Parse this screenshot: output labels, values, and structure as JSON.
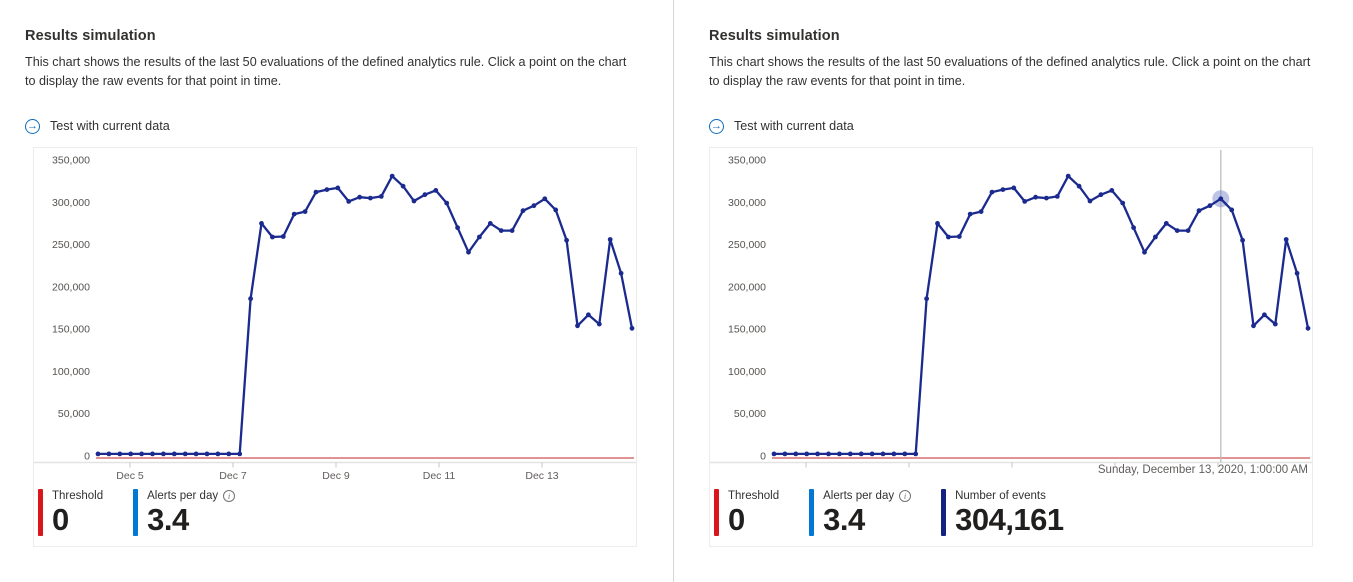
{
  "panels": [
    {
      "title": "Results simulation",
      "description": "This chart shows the results of the last 50 evaluations of the defined analytics rule. Click a point on the chart to display the raw events for that point in time.",
      "action_label": "Test with current data",
      "stats": [
        {
          "label": "Threshold",
          "value": "0",
          "bar_color": "#d8161c"
        },
        {
          "label": "Alerts per day",
          "value": "3.4",
          "bar_color": "#0078d4",
          "info": "i"
        }
      ]
    },
    {
      "title": "Results simulation",
      "description": "This chart shows the results of the last 50 evaluations of the defined analytics rule. Click a point on the chart to display the raw events for that point in time.",
      "action_label": "Test with current data",
      "stats": [
        {
          "label": "Threshold",
          "value": "0",
          "bar_color": "#d8161c"
        },
        {
          "label": "Alerts per day",
          "value": "3.4",
          "bar_color": "#0078d4",
          "info": "i"
        },
        {
          "label": "Number of events",
          "value": "304,161",
          "bar_color": "#142382"
        }
      ],
      "selected_time_label": "Sunday, December 13, 2020, 1:00:00 AM"
    }
  ],
  "chart_data": {
    "type": "line",
    "title": "Results simulation — last 50 evaluations",
    "ylabel": "",
    "xlabel": "",
    "ylim": [
      0,
      350000
    ],
    "grid": false,
    "x_tick_labels": [
      "Dec 5",
      "Dec 7",
      "Dec 9",
      "Dec 11",
      "Dec 13"
    ],
    "y_tick_labels": [
      "0",
      "50,000",
      "100,000",
      "150,000",
      "200,000",
      "250,000",
      "300,000",
      "350,000"
    ],
    "y_tick_values": [
      0,
      50000,
      100000,
      150000,
      200000,
      250000,
      300000,
      350000
    ],
    "series": [
      {
        "name": "Number of events",
        "values": [
          2500,
          2500,
          2500,
          2500,
          2500,
          2500,
          2500,
          2500,
          2500,
          2500,
          2500,
          2500,
          2500,
          2500,
          186000,
          275000,
          259000,
          259500,
          286000,
          289000,
          312000,
          315000,
          317000,
          301000,
          306000,
          305000,
          307000,
          331000,
          319000,
          301500,
          309000,
          314000,
          299000,
          270000,
          241000,
          259000,
          275000,
          266500,
          266500,
          290000,
          296000,
          304161,
          291000,
          255000,
          154000,
          167000,
          156000,
          256000,
          216000,
          151000
        ]
      }
    ],
    "threshold_value": 0,
    "charts": [
      {
        "panel": "left",
        "show_x_labels": true,
        "selected_index": null
      },
      {
        "panel": "right",
        "show_x_labels": false,
        "selected_index": 41,
        "selected_value": 304161,
        "selected_time": "Sunday, December 13, 2020, 1:00:00 AM"
      }
    ],
    "colors": {
      "line": "#1b2a8e",
      "threshold_line": "#cf5050",
      "axis_line": "#e3e3e3",
      "tick": "#c8c6c4",
      "selection_line": "#bdbdbd",
      "halo": "rgba(110,125,200,0.45)",
      "axis_text": "#605e5c"
    }
  }
}
